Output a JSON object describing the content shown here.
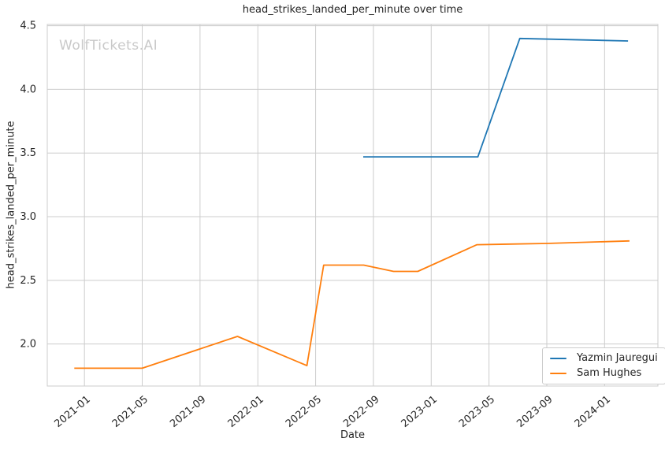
{
  "watermark": "WolfTickets.AI",
  "chart": {
    "title": "head_strikes_landed_per_minute over time",
    "xlabel": "Date",
    "ylabel": "head_strikes_landed_per_minute"
  },
  "chart_data": {
    "type": "line",
    "title": "head_strikes_landed_per_minute over time",
    "xlabel": "Date",
    "ylabel": "head_strikes_landed_per_minute",
    "grid": true,
    "grid_color": "#cccccc",
    "spine_color": "#cccccc",
    "tick_label_color": "#262626",
    "legend_position": "lower right",
    "x_ticks": [
      "2021-01",
      "2021-05",
      "2021-09",
      "2022-01",
      "2022-05",
      "2022-09",
      "2023-01",
      "2023-05",
      "2023-09",
      "2024-01"
    ],
    "y_ticks": [
      2.0,
      2.5,
      3.0,
      3.5,
      4.0,
      4.5
    ],
    "x_range_dates": [
      "2020-10-14",
      "2024-04-22"
    ],
    "y_range": [
      1.67,
      4.51
    ],
    "series": [
      {
        "name": "Yazmin Jauregui",
        "color": "#1f77b4",
        "points": [
          [
            "2022-08-10",
            3.47
          ],
          [
            "2023-04-08",
            3.47
          ],
          [
            "2023-07-05",
            4.4
          ],
          [
            "2024-02-20",
            4.38
          ]
        ]
      },
      {
        "name": "Sam Hughes",
        "color": "#ff7f0e",
        "points": [
          [
            "2020-12-10",
            1.81
          ],
          [
            "2021-05-01",
            1.81
          ],
          [
            "2021-11-19",
            2.06
          ],
          [
            "2022-04-13",
            1.83
          ],
          [
            "2022-05-18",
            2.62
          ],
          [
            "2022-08-11",
            2.62
          ],
          [
            "2022-10-13",
            2.57
          ],
          [
            "2022-12-03",
            2.57
          ],
          [
            "2023-04-06",
            2.78
          ],
          [
            "2023-09-01",
            2.79
          ],
          [
            "2024-02-23",
            2.81
          ]
        ]
      }
    ]
  }
}
